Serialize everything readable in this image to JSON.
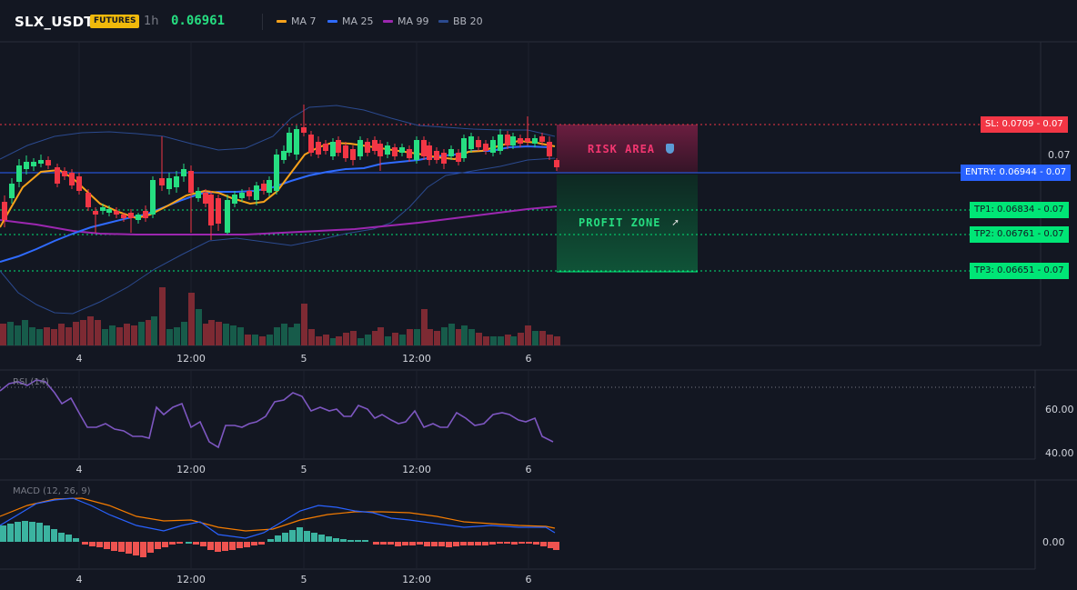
{
  "header": {
    "symbol": "SLX_USDT",
    "badge": "FUTURES",
    "timeframe": "1h",
    "last_price": "0.06961",
    "legend": [
      {
        "label": "MA 7",
        "color": "#f7a21b"
      },
      {
        "label": "MA 25",
        "color": "#2f6bff"
      },
      {
        "label": "MA 99",
        "color": "#9c27b0"
      },
      {
        "label": "BB 20",
        "color": "#2b4a8f"
      }
    ]
  },
  "price_axis": {
    "label": "0.07"
  },
  "levels": {
    "sl": {
      "label": "SL: 0.0709 - 0.07",
      "color": "#f23645"
    },
    "entry": {
      "label": "ENTRY: 0.06944 - 0.07",
      "color": "#2962ff"
    },
    "tp1": {
      "label": "TP1: 0.06834 - 0.07",
      "color": "#00e676"
    },
    "tp2": {
      "label": "TP2: 0.06761 - 0.07",
      "color": "#00e676"
    },
    "tp3": {
      "label": "TP3: 0.06651 - 0.07",
      "color": "#00e676"
    }
  },
  "zones": {
    "risk": {
      "label": "RISK AREA",
      "icon": "shield-icon"
    },
    "profit": {
      "label": "PROFIT ZONE",
      "icon": "rocket-icon"
    }
  },
  "time_axis": [
    "4",
    "12:00",
    "5",
    "12:00",
    "6"
  ],
  "rsi": {
    "title": "RSI (14)",
    "ticks": [
      "60.00",
      "40.00"
    ]
  },
  "macd": {
    "title": "MACD (12, 26, 9)",
    "ticks": [
      "0.00"
    ]
  },
  "colors": {
    "up": "#26de81",
    "down": "#f23645",
    "bg": "#131722"
  }
}
